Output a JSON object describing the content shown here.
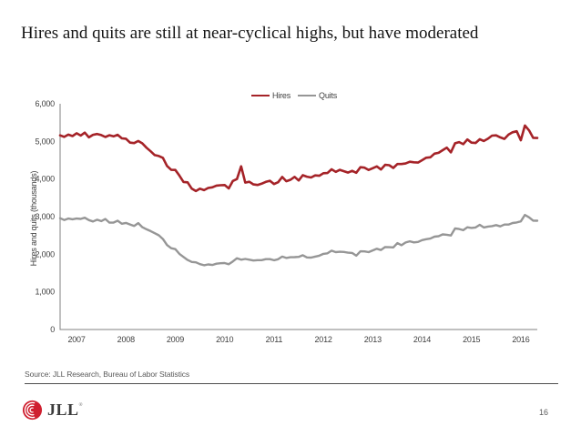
{
  "slide": {
    "title": "Hires and quits are still at near-cyclical highs, but have moderated",
    "source_note": "Source: JLL Research, Bureau of Labor Statistics",
    "page_number": "16",
    "logo_text": "JLL",
    "logo_registered_mark": "®"
  },
  "colors": {
    "hires_line": "#a52328",
    "quits_line": "#969696",
    "axis": "#808080",
    "logo_red": "#cf2030"
  },
  "chart_data": {
    "type": "line",
    "title": "",
    "xlabel": "",
    "ylabel": "Hires and quits (thousands)",
    "x_frequency": "monthly",
    "x_start": "2006-09",
    "x_end": "2016-05",
    "x_tick_labels": [
      "2007",
      "2008",
      "2009",
      "2010",
      "2011",
      "2012",
      "2013",
      "2014",
      "2015",
      "2016"
    ],
    "ylim": [
      0,
      6000
    ],
    "yticks": [
      0,
      1000,
      2000,
      3000,
      4000,
      5000,
      6000
    ],
    "ytick_labels": [
      "0",
      "1,000",
      "2,000",
      "3,000",
      "4,000",
      "5,000",
      "6,000"
    ],
    "grid": false,
    "legend_position": "top-center",
    "series": [
      {
        "name": "Hires",
        "color": "#a52328",
        "values": [
          5160,
          5120,
          5180,
          5140,
          5216,
          5156,
          5233,
          5107,
          5174,
          5197,
          5168,
          5117,
          5163,
          5133,
          5174,
          5080,
          5070,
          4966,
          4956,
          5010,
          4948,
          4832,
          4736,
          4636,
          4612,
          4562,
          4347,
          4243,
          4240,
          4091,
          3921,
          3912,
          3743,
          3681,
          3742,
          3703,
          3761,
          3779,
          3826,
          3835,
          3840,
          3751,
          3949,
          4000,
          4339,
          3906,
          3926,
          3857,
          3843,
          3877,
          3924,
          3954,
          3865,
          3915,
          4056,
          3942,
          3979,
          4057,
          3961,
          4101,
          4061,
          4040,
          4096,
          4087,
          4155,
          4160,
          4257,
          4191,
          4243,
          4208,
          4172,
          4218,
          4167,
          4313,
          4301,
          4240,
          4288,
          4335,
          4253,
          4377,
          4368,
          4294,
          4398,
          4399,
          4413,
          4459,
          4445,
          4437,
          4501,
          4565,
          4578,
          4675,
          4695,
          4765,
          4835,
          4709,
          4950,
          4982,
          4927,
          5051,
          4966,
          4957,
          5057,
          5010,
          5071,
          5153,
          5161,
          5108,
          5066,
          5180,
          5242,
          5269,
          5029,
          5422,
          5292,
          5092,
          5090
        ]
      },
      {
        "name": "Quits",
        "color": "#969696",
        "values": [
          2960,
          2910,
          2950,
          2930,
          2949,
          2939,
          2972,
          2909,
          2871,
          2917,
          2882,
          2937,
          2841,
          2842,
          2891,
          2811,
          2833,
          2793,
          2754,
          2829,
          2719,
          2663,
          2615,
          2559,
          2503,
          2405,
          2246,
          2160,
          2136,
          2011,
          1929,
          1848,
          1795,
          1785,
          1736,
          1707,
          1731,
          1715,
          1749,
          1761,
          1765,
          1735,
          1809,
          1894,
          1855,
          1876,
          1856,
          1834,
          1843,
          1843,
          1870,
          1870,
          1841,
          1868,
          1938,
          1902,
          1921,
          1923,
          1930,
          1975,
          1917,
          1911,
          1938,
          1962,
          2010,
          2024,
          2094,
          2056,
          2066,
          2061,
          2042,
          2034,
          1962,
          2079,
          2075,
          2057,
          2103,
          2147,
          2112,
          2191,
          2186,
          2182,
          2295,
          2240,
          2312,
          2344,
          2315,
          2328,
          2377,
          2401,
          2417,
          2468,
          2480,
          2528,
          2519,
          2500,
          2685,
          2671,
          2640,
          2716,
          2700,
          2713,
          2783,
          2712,
          2737,
          2748,
          2774,
          2741,
          2789,
          2789,
          2830,
          2846,
          2873,
          3047,
          2980,
          2894,
          2890
        ]
      }
    ]
  }
}
